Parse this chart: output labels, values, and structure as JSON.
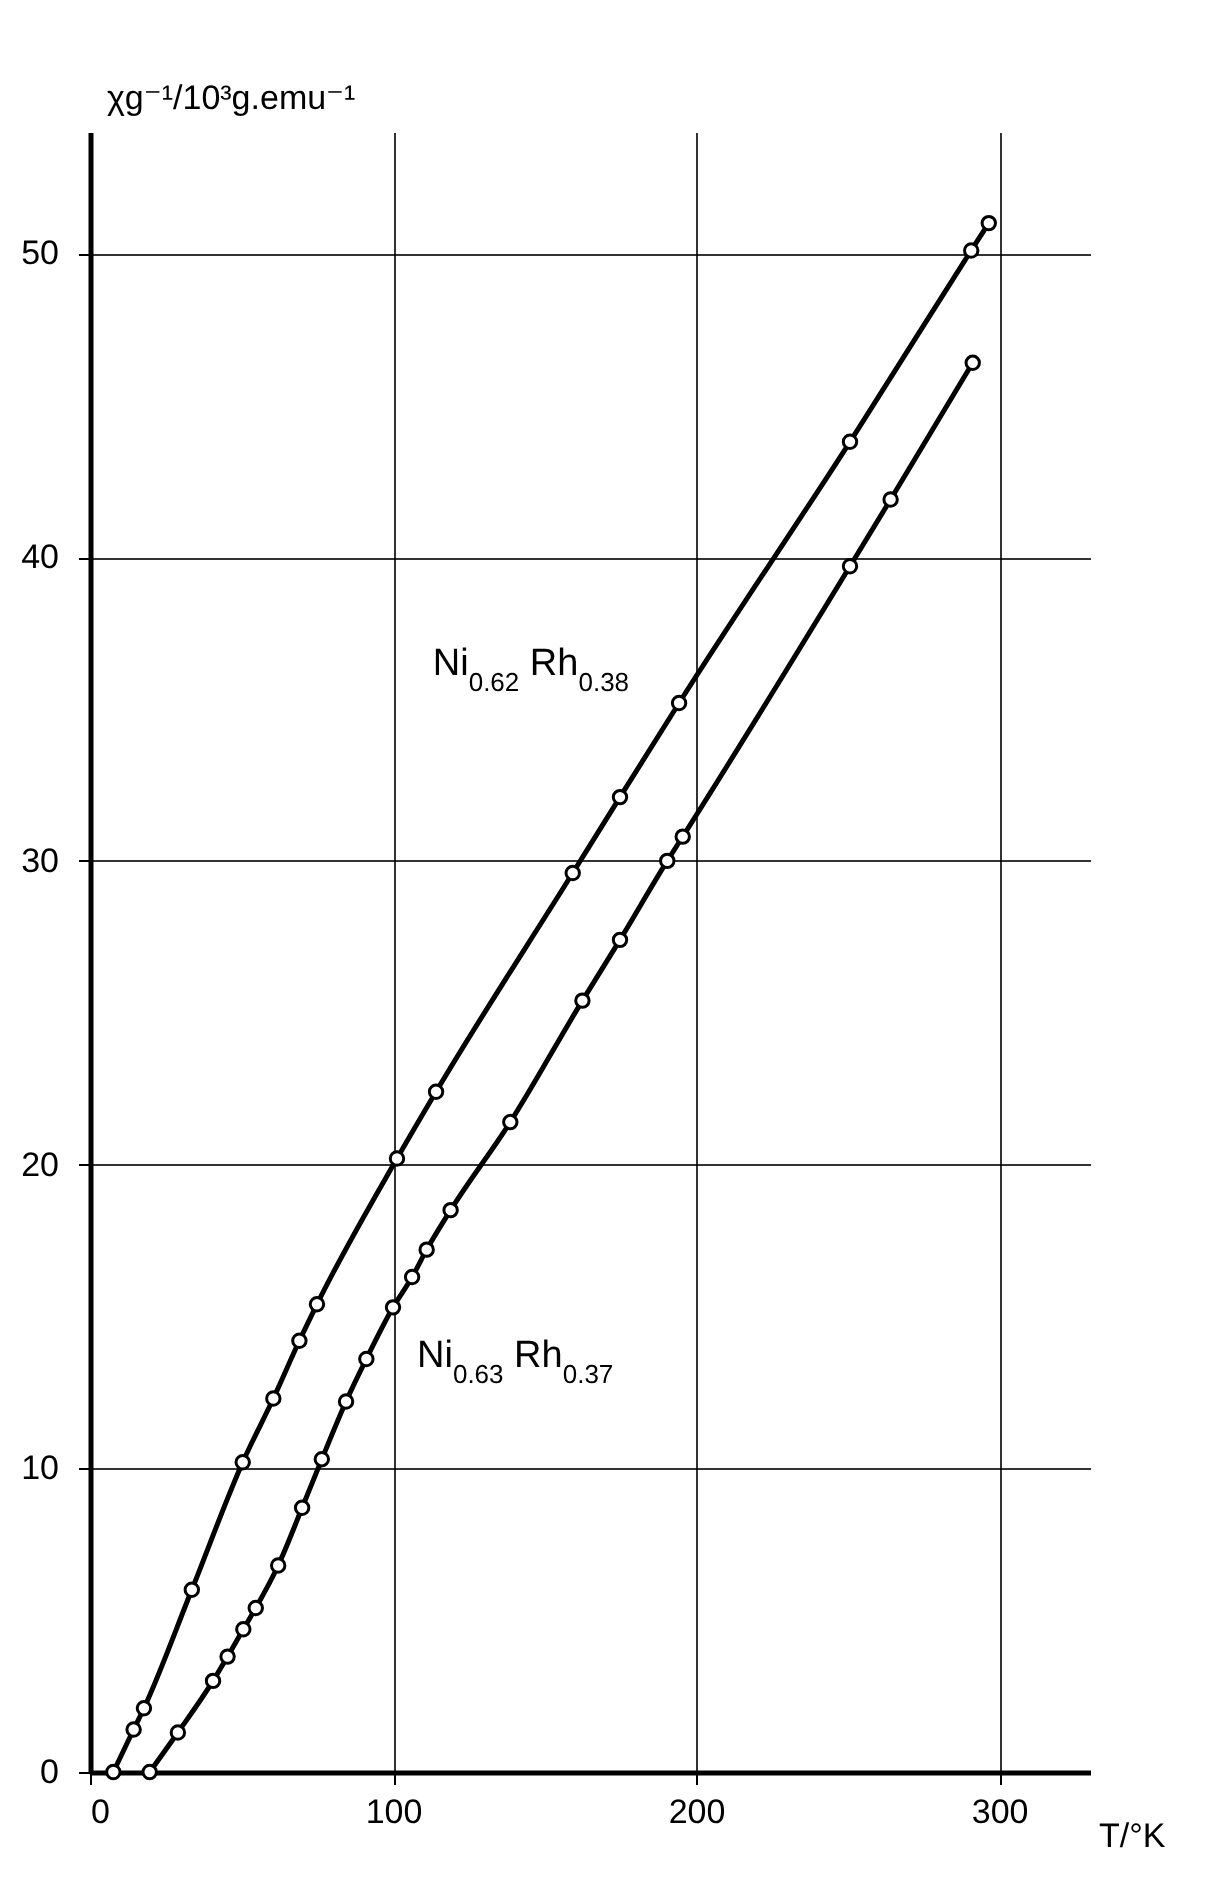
{
  "chart_data": {
    "type": "line",
    "xlabel": "T/°K",
    "ylabel": "χg⁻¹/10³g.emu⁻¹",
    "xlim": [
      0,
      330
    ],
    "ylim": [
      0,
      54
    ],
    "xticks": [
      0,
      100,
      200,
      300
    ],
    "yticks": [
      0,
      10,
      20,
      30,
      40,
      50
    ],
    "grid": true,
    "marker": "circle",
    "line_style": "solid",
    "series": [
      {
        "name": "Ni$_{0.62}$ Rh$_{0.38}$",
        "color": "#000000",
        "x": [
          7.7,
          14.4,
          17.8,
          33.6,
          50.4,
          60.5,
          69.1,
          74.9,
          101.3,
          114.2,
          159.3,
          174.9,
          194.4,
          250.8,
          290.8,
          296.6
        ],
        "values": [
          0,
          1.4,
          2.1,
          6.0,
          10.2,
          12.3,
          14.2,
          15.4,
          20.2,
          22.4,
          29.6,
          32.1,
          35.2,
          43.8,
          50.1,
          51.0
        ]
      },
      {
        "name": "Ni$_{0.63}$ Rh$_{0.37}$",
        "color": "#000000",
        "x": [
          19.7,
          29.0,
          40.6,
          45.4,
          50.6,
          54.7,
          62.1,
          70.0,
          76.5,
          84.5,
          91.2,
          100.0,
          106.3,
          111.1,
          119.0,
          138.7,
          162.5,
          174.9,
          190.5,
          195.6,
          250.8,
          264.2,
          291.3
        ],
        "values": [
          0,
          1.3,
          3.0,
          3.8,
          4.7,
          5.4,
          6.8,
          8.7,
          10.3,
          12.2,
          13.6,
          15.3,
          16.3,
          17.2,
          18.5,
          21.4,
          25.4,
          27.4,
          30.0,
          30.8,
          39.7,
          41.9,
          46.4
        ]
      }
    ]
  }
}
